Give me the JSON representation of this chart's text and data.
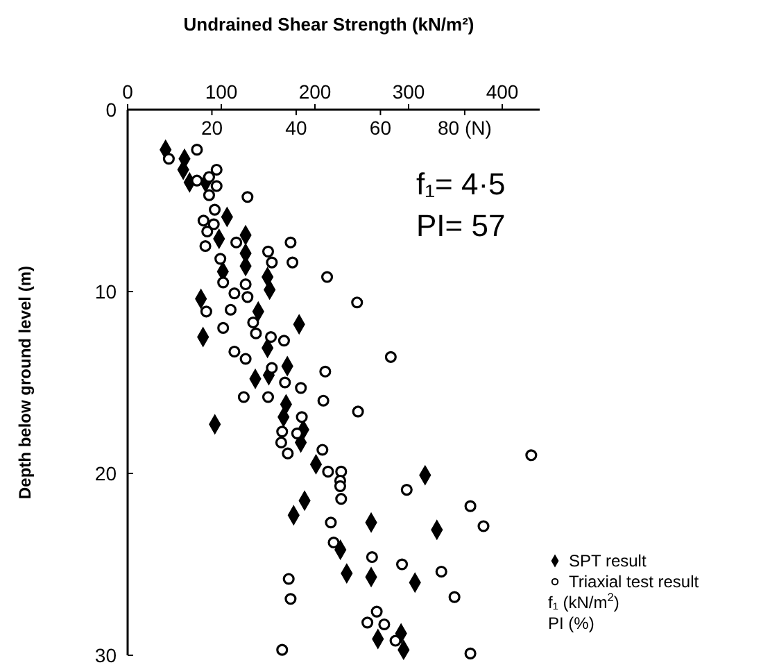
{
  "chart_data": {
    "type": "scatter",
    "xlabel": "Undrained Shear Strength (kN/m²)",
    "ylabel": "Depth below ground level (m)",
    "xlim": [
      0,
      440
    ],
    "xticks": [
      0,
      100,
      200,
      300,
      400
    ],
    "x2lim": [
      0,
      97.8
    ],
    "x2ticks": [
      20,
      40,
      60,
      {
        "value": 80,
        "label": "80 (N)"
      }
    ],
    "ylim": [
      30,
      0
    ],
    "yticks": [
      0,
      10,
      20,
      30
    ],
    "grid": false,
    "legend": "bottom right",
    "series": [
      {
        "name": "SPT result",
        "color": "#000000",
        "marker": "diamond",
        "axis": "x2",
        "x": [
          9.0,
          13.5,
          13.2,
          14.7,
          18.5,
          23.6,
          21.7,
          28.0,
          28.0,
          28.0,
          22.6,
          33.2,
          33.7,
          17.4,
          31.0,
          40.7,
          17.9,
          33.2,
          37.9,
          30.3,
          33.5,
          37.6,
          37.0,
          20.7,
          41.7,
          41.1,
          44.7,
          70.6,
          42.0,
          39.4,
          57.8,
          73.4,
          50.5,
          52.0,
          57.8,
          68.2,
          59.4,
          64.9,
          65.5
        ],
        "values": [
          2.2,
          2.7,
          3.3,
          4.0,
          4.0,
          5.9,
          7.1,
          6.9,
          7.9,
          8.6,
          8.9,
          9.2,
          9.9,
          10.4,
          11.1,
          11.8,
          12.5,
          13.1,
          14.1,
          14.8,
          14.6,
          16.2,
          16.9,
          17.3,
          17.6,
          18.3,
          19.5,
          20.1,
          21.5,
          22.3,
          22.7,
          23.1,
          24.2,
          25.5,
          25.7,
          26.0,
          29.1,
          28.8,
          29.7
        ]
      },
      {
        "name": "Triaxial test result",
        "color": "#000000",
        "marker": "circle",
        "x": [
          44,
          74,
          95,
          87,
          74,
          95,
          87,
          128,
          93,
          81,
          92,
          85,
          116,
          83,
          150,
          174,
          154,
          176,
          99,
          102,
          126,
          114,
          128,
          213,
          245,
          84,
          110,
          102,
          134,
          137,
          153,
          167,
          114,
          126,
          281,
          154,
          211,
          168,
          185,
          124,
          150,
          209,
          246,
          186,
          165,
          181,
          164,
          171,
          208,
          431,
          214,
          228,
          227,
          227,
          228,
          298,
          366,
          380,
          217,
          220,
          261,
          293,
          335,
          172,
          174,
          349,
          266,
          256,
          274,
          286,
          165,
          366
        ],
        "values": [
          2.7,
          2.2,
          3.3,
          3.7,
          3.9,
          4.2,
          4.7,
          4.8,
          5.5,
          6.1,
          6.3,
          6.7,
          7.3,
          7.5,
          7.8,
          7.3,
          8.4,
          8.4,
          8.2,
          9.5,
          9.6,
          10.1,
          10.3,
          9.2,
          10.6,
          11.1,
          11.0,
          12.0,
          11.7,
          12.3,
          12.5,
          12.7,
          13.3,
          13.7,
          13.6,
          14.2,
          14.4,
          15.0,
          15.3,
          15.8,
          15.8,
          16.0,
          16.6,
          16.9,
          17.7,
          17.8,
          18.3,
          18.9,
          18.7,
          19.0,
          19.9,
          19.9,
          20.4,
          20.7,
          21.4,
          20.9,
          21.8,
          22.9,
          22.7,
          23.8,
          24.6,
          25.0,
          25.4,
          25.8,
          26.9,
          26.8,
          27.6,
          28.2,
          28.3,
          29.2,
          29.7,
          29.9
        ]
      }
    ],
    "annotations": [
      "f₁= 4·5",
      "PI= 57",
      "f₁  (kN/m$^{2}$)",
      "PI  (%)"
    ]
  }
}
